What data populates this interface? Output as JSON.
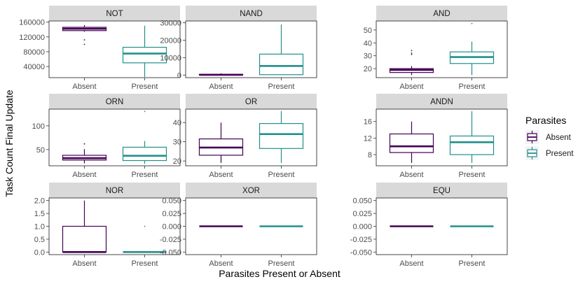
{
  "chart_data": {
    "type": "box",
    "xlabel": "Parasites Present or Absent",
    "ylabel": "Task Count Final Update",
    "categories": [
      "Absent",
      "Present"
    ],
    "legend": {
      "title": "Parasites",
      "position": "right",
      "entries": [
        {
          "name": "Absent",
          "color": "#440154"
        },
        {
          "name": "Present",
          "color": "#21908C"
        }
      ]
    },
    "panels": [
      {
        "title": "NOT",
        "ylim": [
          10000,
          163000
        ],
        "yticks": [
          40000,
          80000,
          120000,
          160000
        ],
        "ytick_labels": [
          "40000",
          "80000",
          "120000",
          "160000"
        ],
        "boxes": [
          {
            "group": "Absent",
            "lower_whisker": 134000,
            "q1": 137000,
            "median": 142000,
            "q3": 146000,
            "upper_whisker": 152000,
            "outliers": [
              100000,
              112000
            ]
          },
          {
            "group": "Present",
            "lower_whisker": 12000,
            "q1": 50000,
            "median": 75000,
            "q3": 92000,
            "upper_whisker": 150000,
            "outliers": []
          }
        ]
      },
      {
        "title": "NAND",
        "ylim": [
          -1500,
          31000
        ],
        "yticks": [
          0,
          10000,
          20000,
          30000
        ],
        "ytick_labels": [
          "0",
          "10000",
          "20000",
          "30000"
        ],
        "boxes": [
          {
            "group": "Absent",
            "lower_whisker": 0,
            "q1": 0,
            "median": 150,
            "q3": 400,
            "upper_whisker": 1000,
            "outliers": []
          },
          {
            "group": "Present",
            "lower_whisker": 0,
            "q1": 200,
            "median": 5200,
            "q3": 12000,
            "upper_whisker": 29000,
            "outliers": []
          }
        ]
      },
      {
        "title": "AND",
        "ylim": [
          13,
          57
        ],
        "yticks": [
          20,
          30,
          40,
          50
        ],
        "ytick_labels": [
          "20",
          "30",
          "40",
          "50"
        ],
        "boxes": [
          {
            "group": "Absent",
            "lower_whisker": 15,
            "q1": 17,
            "median": 19,
            "q3": 20,
            "upper_whisker": 22,
            "outliers": [
              31,
              32,
              34
            ]
          },
          {
            "group": "Present",
            "lower_whisker": 15,
            "q1": 24,
            "median": 29,
            "q3": 33,
            "upper_whisker": 41,
            "outliers": [
              55
            ]
          }
        ]
      },
      {
        "title": "ORN",
        "ylim": [
          16,
          135
        ],
        "yticks": [
          50,
          100
        ],
        "ytick_labels": [
          "50",
          "100"
        ],
        "boxes": [
          {
            "group": "Absent",
            "lower_whisker": 21,
            "q1": 28,
            "median": 32,
            "q3": 38,
            "upper_whisker": 51,
            "outliers": [
              62
            ]
          },
          {
            "group": "Present",
            "lower_whisker": 20,
            "q1": 27,
            "median": 37,
            "q3": 55,
            "upper_whisker": 68,
            "outliers": [
              130
            ]
          }
        ]
      },
      {
        "title": "OR",
        "ylim": [
          17.5,
          47
        ],
        "yticks": [
          20,
          30,
          40
        ],
        "ytick_labels": [
          "20",
          "30",
          "40"
        ],
        "boxes": [
          {
            "group": "Absent",
            "lower_whisker": 19,
            "q1": 23,
            "median": 27,
            "q3": 31.5,
            "upper_whisker": 40,
            "outliers": []
          },
          {
            "group": "Present",
            "lower_whisker": 19,
            "q1": 26.5,
            "median": 34,
            "q3": 39.5,
            "upper_whisker": 46,
            "outliers": []
          }
        ]
      },
      {
        "title": "ANDN",
        "ylim": [
          5.3,
          19
        ],
        "yticks": [
          8,
          12,
          16
        ],
        "ytick_labels": [
          "8",
          "12",
          "16"
        ],
        "boxes": [
          {
            "group": "Absent",
            "lower_whisker": 6,
            "q1": 8.5,
            "median": 10,
            "q3": 13,
            "upper_whisker": 16,
            "outliers": []
          },
          {
            "group": "Present",
            "lower_whisker": 6,
            "q1": 8,
            "median": 11,
            "q3": 12.5,
            "upper_whisker": 18.5,
            "outliers": []
          }
        ]
      },
      {
        "title": "NOR",
        "ylim": [
          -0.1,
          2.1
        ],
        "yticks": [
          0,
          0.5,
          1,
          1.5,
          2
        ],
        "ytick_labels": [
          "0.0",
          "0.5",
          "1.0",
          "1.5",
          "2.0"
        ],
        "boxes": [
          {
            "group": "Absent",
            "lower_whisker": 0,
            "q1": 0,
            "median": 0,
            "q3": 1,
            "upper_whisker": 2,
            "outliers": []
          },
          {
            "group": "Present",
            "lower_whisker": 0,
            "q1": 0,
            "median": 0,
            "q3": 0,
            "upper_whisker": 0,
            "outliers": [
              1
            ]
          }
        ]
      },
      {
        "title": "XOR",
        "ylim": [
          -0.055,
          0.055
        ],
        "yticks": [
          -0.05,
          -0.025,
          0,
          0.025,
          0.05
        ],
        "ytick_labels": [
          "-0.050",
          "-0.025",
          "0.000",
          "0.025",
          "0.050"
        ],
        "boxes": [
          {
            "group": "Absent",
            "lower_whisker": 0,
            "q1": 0,
            "median": 0,
            "q3": 0,
            "upper_whisker": 0,
            "outliers": []
          },
          {
            "group": "Present",
            "lower_whisker": 0,
            "q1": 0,
            "median": 0,
            "q3": 0,
            "upper_whisker": 0,
            "outliers": []
          }
        ]
      },
      {
        "title": "EQU",
        "ylim": [
          -0.055,
          0.055
        ],
        "yticks": [
          -0.05,
          -0.025,
          0,
          0.025,
          0.05
        ],
        "ytick_labels": [
          "-0.050",
          "-0.025",
          "0.000",
          "0.025",
          "0.050"
        ],
        "boxes": [
          {
            "group": "Absent",
            "lower_whisker": 0,
            "q1": 0,
            "median": 0,
            "q3": 0,
            "upper_whisker": 0,
            "outliers": []
          },
          {
            "group": "Present",
            "lower_whisker": 0,
            "q1": 0,
            "median": 0,
            "q3": 0,
            "upper_whisker": 0,
            "outliers": []
          }
        ]
      }
    ]
  }
}
